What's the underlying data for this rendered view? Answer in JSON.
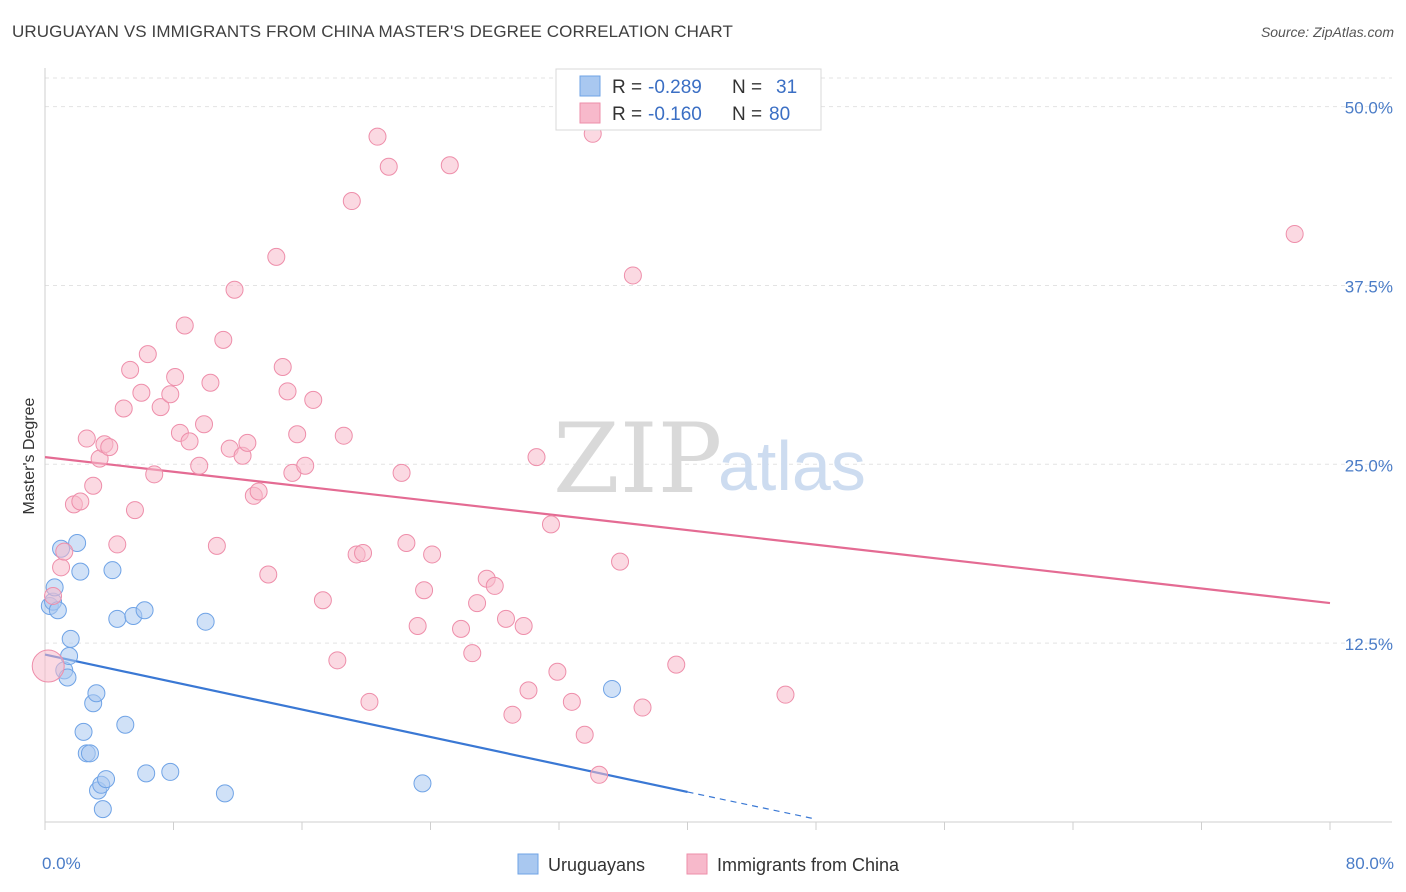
{
  "header": {
    "title": "URUGUAYAN VS IMMIGRANTS FROM CHINA MASTER'S DEGREE CORRELATION CHART",
    "source": "Source: ZipAtlas.com"
  },
  "watermark": {
    "zip": "ZIP",
    "atlas": "atlas"
  },
  "legend": {
    "rows": [
      {
        "r_label": "R =",
        "r_value": "-0.289",
        "n_label": "N =",
        "n_value": "31",
        "color": "#a9c8f0"
      },
      {
        "r_label": "R =",
        "r_value": "-0.160",
        "n_label": "N =",
        "n_value": "80",
        "color": "#f7b9cb"
      }
    ]
  },
  "bottom_legend": [
    {
      "label": "Uruguayans",
      "color": "#a9c8f0"
    },
    {
      "label": "Immigrants from China",
      "color": "#f7b9cb"
    }
  ],
  "chart_data": {
    "type": "scatter",
    "title": "URUGUAYAN VS IMMIGRANTS FROM CHINA MASTER'S DEGREE CORRELATION CHART",
    "xlabel": "",
    "ylabel": "Master's Degree",
    "xlim": [
      0,
      80
    ],
    "ylim": [
      0,
      52
    ],
    "x_tick_labels": [
      "0.0%",
      "80.0%"
    ],
    "y_ticks": [
      12.5,
      25.0,
      37.5,
      50.0
    ],
    "y_tick_labels": [
      "12.5%",
      "25.0%",
      "37.5%",
      "50.0%"
    ],
    "grid": true,
    "legend_position": "top-center",
    "series": [
      {
        "name": "Uruguayans",
        "color": "#6fa3e6",
        "fill": "#a9c8f0",
        "points": [
          [
            0.3,
            15.1
          ],
          [
            0.5,
            15.4
          ],
          [
            0.6,
            16.4
          ],
          [
            0.8,
            14.8
          ],
          [
            1.0,
            19.1
          ],
          [
            1.2,
            10.6
          ],
          [
            1.4,
            10.1
          ],
          [
            1.5,
            11.6
          ],
          [
            1.6,
            12.8
          ],
          [
            2.0,
            19.5
          ],
          [
            2.2,
            17.5
          ],
          [
            2.4,
            6.3
          ],
          [
            2.6,
            4.8
          ],
          [
            2.8,
            4.8
          ],
          [
            3.0,
            8.3
          ],
          [
            3.2,
            9.0
          ],
          [
            3.3,
            2.2
          ],
          [
            3.5,
            2.6
          ],
          [
            3.6,
            0.9
          ],
          [
            3.8,
            3.0
          ],
          [
            4.2,
            17.6
          ],
          [
            4.5,
            14.2
          ],
          [
            5.0,
            6.8
          ],
          [
            5.5,
            14.4
          ],
          [
            6.2,
            14.8
          ],
          [
            6.3,
            3.4
          ],
          [
            7.8,
            3.5
          ],
          [
            10.0,
            14.0
          ],
          [
            11.2,
            2.0
          ],
          [
            23.5,
            2.7
          ],
          [
            35.3,
            9.3
          ]
        ]
      },
      {
        "name": "Immigrants from China",
        "color": "#ee8eaa",
        "fill": "#f7b9cb",
        "points": [
          [
            0.2,
            10.9
          ],
          [
            0.5,
            15.8
          ],
          [
            1.0,
            17.8
          ],
          [
            1.2,
            18.9
          ],
          [
            1.8,
            22.2
          ],
          [
            2.2,
            22.4
          ],
          [
            2.6,
            26.8
          ],
          [
            3.0,
            23.5
          ],
          [
            3.4,
            25.4
          ],
          [
            3.7,
            26.4
          ],
          [
            4.0,
            26.2
          ],
          [
            4.5,
            19.4
          ],
          [
            4.9,
            28.9
          ],
          [
            5.3,
            31.6
          ],
          [
            5.6,
            21.8
          ],
          [
            6.0,
            30.0
          ],
          [
            6.4,
            32.7
          ],
          [
            6.8,
            24.3
          ],
          [
            7.2,
            29.0
          ],
          [
            7.8,
            29.9
          ],
          [
            8.1,
            31.1
          ],
          [
            8.4,
            27.2
          ],
          [
            8.7,
            34.7
          ],
          [
            9.0,
            26.6
          ],
          [
            9.6,
            24.9
          ],
          [
            9.9,
            27.8
          ],
          [
            10.3,
            30.7
          ],
          [
            10.7,
            19.3
          ],
          [
            11.1,
            33.7
          ],
          [
            11.5,
            26.1
          ],
          [
            11.8,
            37.2
          ],
          [
            12.3,
            25.6
          ],
          [
            12.6,
            26.5
          ],
          [
            13.0,
            22.8
          ],
          [
            13.3,
            23.1
          ],
          [
            13.9,
            17.3
          ],
          [
            14.4,
            39.5
          ],
          [
            14.8,
            31.8
          ],
          [
            15.1,
            30.1
          ],
          [
            15.4,
            24.4
          ],
          [
            15.7,
            27.1
          ],
          [
            16.2,
            24.9
          ],
          [
            16.7,
            29.5
          ],
          [
            17.3,
            15.5
          ],
          [
            18.2,
            11.3
          ],
          [
            18.6,
            27.0
          ],
          [
            19.1,
            43.4
          ],
          [
            19.4,
            18.7
          ],
          [
            19.8,
            18.8
          ],
          [
            20.2,
            8.4
          ],
          [
            20.7,
            47.9
          ],
          [
            21.4,
            45.8
          ],
          [
            22.2,
            24.4
          ],
          [
            22.5,
            19.5
          ],
          [
            23.2,
            13.7
          ],
          [
            23.6,
            16.2
          ],
          [
            24.1,
            18.7
          ],
          [
            25.2,
            45.9
          ],
          [
            25.9,
            13.5
          ],
          [
            26.6,
            11.8
          ],
          [
            26.9,
            15.3
          ],
          [
            27.5,
            17.0
          ],
          [
            28.0,
            16.5
          ],
          [
            28.7,
            14.2
          ],
          [
            29.1,
            7.5
          ],
          [
            29.8,
            13.7
          ],
          [
            30.1,
            9.2
          ],
          [
            30.6,
            25.5
          ],
          [
            31.5,
            20.8
          ],
          [
            31.9,
            10.5
          ],
          [
            32.8,
            8.4
          ],
          [
            33.6,
            6.1
          ],
          [
            34.1,
            48.1
          ],
          [
            34.5,
            3.3
          ],
          [
            35.8,
            18.2
          ],
          [
            36.6,
            38.2
          ],
          [
            37.2,
            8.0
          ],
          [
            39.3,
            11.0
          ],
          [
            46.1,
            8.9
          ],
          [
            77.8,
            41.1
          ]
        ]
      }
    ],
    "trend_lines": [
      {
        "series": "Uruguayans",
        "x": [
          0,
          40
        ],
        "y": [
          11.7,
          2.1
        ],
        "dashed_extension_to": [
          48,
          0.2
        ]
      },
      {
        "series": "Immigrants from China",
        "x": [
          0,
          80
        ],
        "y": [
          25.5,
          15.3
        ]
      }
    ]
  }
}
